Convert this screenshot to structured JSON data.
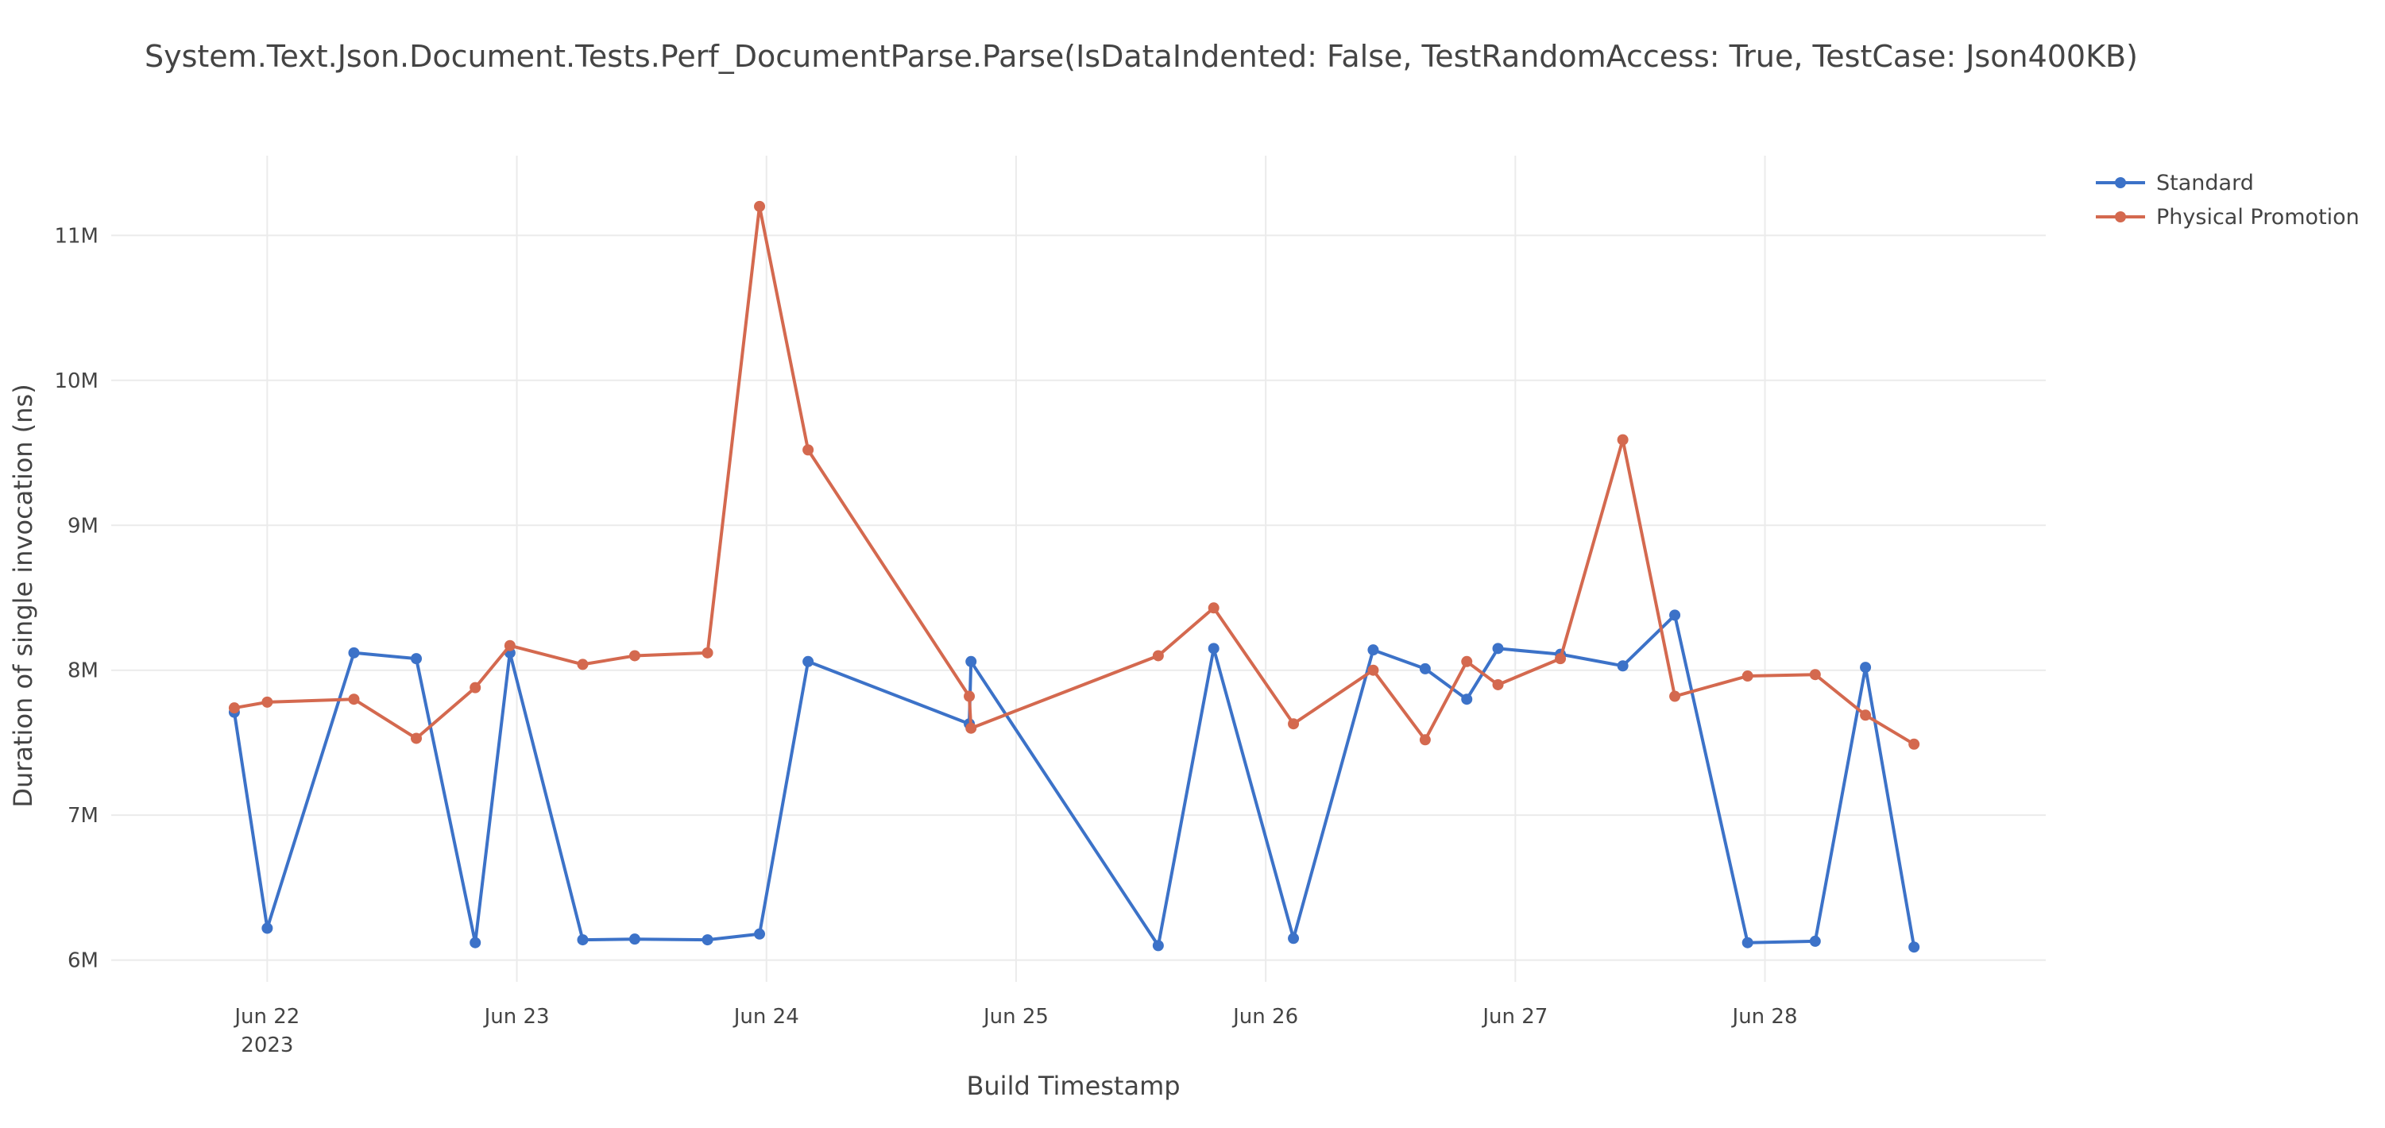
{
  "chart_data": {
    "type": "line",
    "title": "System.Text.Json.Document.Tests.Perf_DocumentParse.Parse(IsDataIndented: False, TestRandomAccess: True, TestCase: Json400KB)",
    "xlabel": "Build Timestamp",
    "ylabel": "Duration of single invocation (ns)",
    "x_ticks": [
      {
        "t": "2023-06-22",
        "label": "Jun 22",
        "sublabel": "2023"
      },
      {
        "t": "2023-06-23",
        "label": "Jun 23",
        "sublabel": ""
      },
      {
        "t": "2023-06-24",
        "label": "Jun 24",
        "sublabel": ""
      },
      {
        "t": "2023-06-25",
        "label": "Jun 25",
        "sublabel": ""
      },
      {
        "t": "2023-06-26",
        "label": "Jun 26",
        "sublabel": ""
      },
      {
        "t": "2023-06-27",
        "label": "Jun 27",
        "sublabel": ""
      },
      {
        "t": "2023-06-28",
        "label": "Jun 28",
        "sublabel": ""
      }
    ],
    "xlim": [
      "2023-06-21T09:00",
      "2023-06-29T03:00"
    ],
    "y_ticks": [
      {
        "v": 6000000,
        "label": "6M"
      },
      {
        "v": 7000000,
        "label": "7M"
      },
      {
        "v": 8000000,
        "label": "8M"
      },
      {
        "v": 9000000,
        "label": "9M"
      },
      {
        "v": 10000000,
        "label": "10M"
      },
      {
        "v": 11000000,
        "label": "11M"
      }
    ],
    "ylim": [
      5850000,
      11550000
    ],
    "grid": true,
    "legend_position": "top-right",
    "series": [
      {
        "name": "Standard",
        "color": "#3c72c8",
        "points": [
          [
            "2023-06-21T20:50",
            7710000
          ],
          [
            "2023-06-22T00:00",
            6220000
          ],
          [
            "2023-06-22T08:20",
            8120000
          ],
          [
            "2023-06-22T14:20",
            8080000
          ],
          [
            "2023-06-22T20:00",
            6120000
          ],
          [
            "2023-06-22T23:20",
            8120000
          ],
          [
            "2023-06-23T06:20",
            6140000
          ],
          [
            "2023-06-23T11:20",
            6145000
          ],
          [
            "2023-06-23T18:20",
            6140000
          ],
          [
            "2023-06-23T23:20",
            6180000
          ],
          [
            "2023-06-24T04:00",
            8060000
          ],
          [
            "2023-06-24T19:30",
            7630000
          ],
          [
            "2023-06-24T19:40",
            8060000
          ],
          [
            "2023-06-25T13:40",
            6100000
          ],
          [
            "2023-06-25T19:00",
            8150000
          ],
          [
            "2023-06-26T02:40",
            6150000
          ],
          [
            "2023-06-26T10:20",
            8140000
          ],
          [
            "2023-06-26T15:20",
            8010000
          ],
          [
            "2023-06-26T19:20",
            7800000
          ],
          [
            "2023-06-26T22:20",
            8150000
          ],
          [
            "2023-06-27T04:20",
            8110000
          ],
          [
            "2023-06-27T10:20",
            8030000
          ],
          [
            "2023-06-27T15:20",
            8380000
          ],
          [
            "2023-06-27T22:20",
            6120000
          ],
          [
            "2023-06-28T04:50",
            6130000
          ],
          [
            "2023-06-28T09:40",
            8020000
          ],
          [
            "2023-06-28T14:20",
            6090000
          ]
        ]
      },
      {
        "name": "Physical Promotion",
        "color": "#d4694f",
        "points": [
          [
            "2023-06-21T20:50",
            7740000
          ],
          [
            "2023-06-22T00:00",
            7780000
          ],
          [
            "2023-06-22T08:20",
            7800000
          ],
          [
            "2023-06-22T14:20",
            7530000
          ],
          [
            "2023-06-22T20:00",
            7880000
          ],
          [
            "2023-06-22T23:20",
            8170000
          ],
          [
            "2023-06-23T06:20",
            8040000
          ],
          [
            "2023-06-23T11:20",
            8100000
          ],
          [
            "2023-06-23T18:20",
            8120000
          ],
          [
            "2023-06-23T23:20",
            11200000
          ],
          [
            "2023-06-24T04:00",
            9520000
          ],
          [
            "2023-06-24T19:30",
            7820000
          ],
          [
            "2023-06-24T19:40",
            7600000
          ],
          [
            "2023-06-25T13:40",
            8100000
          ],
          [
            "2023-06-25T19:00",
            8430000
          ],
          [
            "2023-06-26T02:40",
            7630000
          ],
          [
            "2023-06-26T10:20",
            8000000
          ],
          [
            "2023-06-26T15:20",
            7520000
          ],
          [
            "2023-06-26T19:20",
            8060000
          ],
          [
            "2023-06-26T22:20",
            7900000
          ],
          [
            "2023-06-27T04:20",
            8080000
          ],
          [
            "2023-06-27T10:20",
            9590000
          ],
          [
            "2023-06-27T15:20",
            7820000
          ],
          [
            "2023-06-27T22:20",
            7960000
          ],
          [
            "2023-06-28T04:50",
            7970000
          ],
          [
            "2023-06-28T09:40",
            7690000
          ],
          [
            "2023-06-28T14:20",
            7490000
          ]
        ]
      }
    ]
  }
}
